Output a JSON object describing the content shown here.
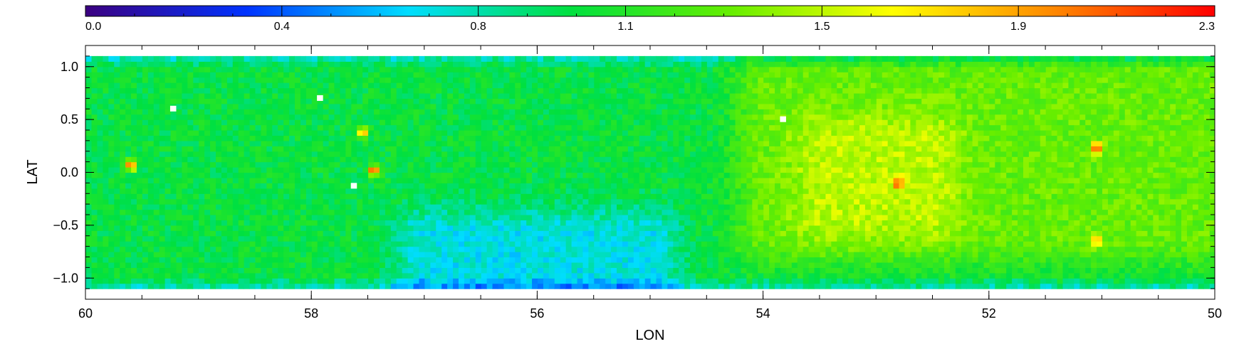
{
  "chart_data": {
    "type": "heatmap",
    "title": "",
    "xlabel": "LON",
    "ylabel": "LAT",
    "x_range": [
      60,
      50
    ],
    "y_range": [
      -1.2,
      1.2
    ],
    "x_ticks": [
      60,
      58,
      56,
      54,
      52,
      50
    ],
    "x_tick_labels": [
      "60",
      "58",
      "56",
      "54",
      "52",
      "50"
    ],
    "y_ticks": [
      -1.0,
      -0.5,
      0.0,
      0.5,
      1.0
    ],
    "y_tick_labels": [
      "−1.0",
      "−0.5",
      "0.0",
      "0.5",
      "1.0"
    ],
    "colorbar": {
      "placement": "top",
      "range": [
        0.0,
        2.3
      ],
      "colormap": "rainbow",
      "ticks": [
        0.0,
        0.4,
        0.8,
        1.1,
        1.5,
        1.9,
        2.3
      ],
      "tick_labels": [
        "0.0",
        "0.4",
        "0.8",
        "1.1",
        "1.5",
        "1.9",
        "2.3"
      ],
      "colors": [
        "#3b0080",
        "#0033ff",
        "#00ddff",
        "#00e040",
        "#66ee00",
        "#ffff00",
        "#ff8800",
        "#ff0000"
      ]
    },
    "grid": false,
    "legend": "none",
    "data_summary": {
      "grid_resolution_deg": 0.05,
      "overall_value_range": [
        0.4,
        2.3
      ],
      "regions": [
        {
          "lon_range": [
            60,
            54
          ],
          "lat_range": [
            -1.0,
            1.0
          ],
          "typical_value": 1.0
        },
        {
          "lon_range": [
            57.0,
            55.0
          ],
          "lat_range": [
            -1.2,
            -0.6
          ],
          "typical_value": 0.7
        },
        {
          "lon_range": [
            54,
            50
          ],
          "lat_range": [
            -0.6,
            0.9
          ],
          "typical_value": 1.3
        },
        {
          "lon_range": [
            53.5,
            52.5
          ],
          "lat_range": [
            -0.4,
            0.3
          ],
          "typical_value": 1.5
        }
      ],
      "peaks": [
        {
          "lon": 59.6,
          "lat": 0.07,
          "value": 2.1
        },
        {
          "lon": 57.55,
          "lat": 0.38,
          "value": 1.9
        },
        {
          "lon": 57.45,
          "lat": 0.02,
          "value": 2.2
        },
        {
          "lon": 52.8,
          "lat": -0.1,
          "value": 2.2
        },
        {
          "lon": 51.05,
          "lat": 0.23,
          "value": 2.2
        },
        {
          "lon": 51.05,
          "lat": -0.65,
          "value": 2.0
        }
      ]
    }
  }
}
